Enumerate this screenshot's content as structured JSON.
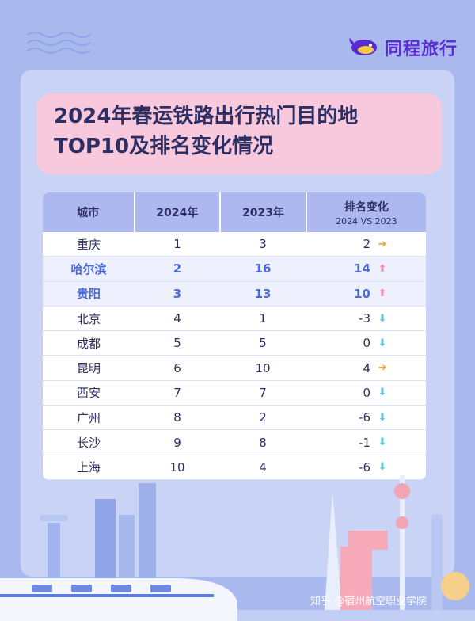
{
  "brand": {
    "name": "同程旅行"
  },
  "title": {
    "line1": "2024年春运铁路出行热门目的地",
    "line2": "TOP10及排名变化情况"
  },
  "table": {
    "headers": {
      "city": "城市",
      "y2024": "2024年",
      "y2023": "2023年",
      "change": "排名变化",
      "change_sub": "2024 VS 2023"
    },
    "rows": [
      {
        "city": "重庆",
        "r2024": "1",
        "r2023": "3",
        "change": "2",
        "dir": "right"
      },
      {
        "city": "哈尔滨",
        "r2024": "2",
        "r2023": "16",
        "change": "14",
        "dir": "up"
      },
      {
        "city": "贵阳",
        "r2024": "3",
        "r2023": "13",
        "change": "10",
        "dir": "up"
      },
      {
        "city": "北京",
        "r2024": "4",
        "r2023": "1",
        "change": "-3",
        "dir": "down"
      },
      {
        "city": "成都",
        "r2024": "5",
        "r2023": "5",
        "change": "0",
        "dir": "down"
      },
      {
        "city": "昆明",
        "r2024": "6",
        "r2023": "10",
        "change": "4",
        "dir": "right"
      },
      {
        "city": "西安",
        "r2024": "7",
        "r2023": "7",
        "change": "0",
        "dir": "down"
      },
      {
        "city": "广州",
        "r2024": "8",
        "r2023": "2",
        "change": "-6",
        "dir": "down"
      },
      {
        "city": "长沙",
        "r2024": "9",
        "r2023": "8",
        "change": "-1",
        "dir": "down"
      },
      {
        "city": "上海",
        "r2024": "10",
        "r2023": "4",
        "change": "-6",
        "dir": "down"
      }
    ]
  },
  "watermark": "知乎 @宿州航空职业学院",
  "colors": {
    "accent": "#5a2bd0",
    "highlight": "#4a6ad8",
    "up": "#f28db0",
    "down": "#55c6d8",
    "right": "#f4a52b"
  }
}
